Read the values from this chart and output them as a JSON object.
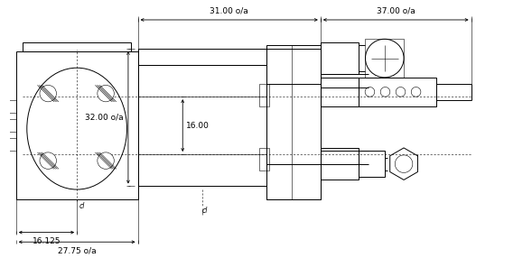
{
  "bg_color": "#ffffff",
  "line_color": "#000000",
  "lw": 0.7,
  "tlw": 0.4,
  "fig_width": 5.89,
  "fig_height": 2.86,
  "dpi": 100,
  "dimensions": {
    "d31": "31.00 o/a",
    "d37": "37.00 o/a",
    "d32": "32.00 o/a",
    "d16": "16.00",
    "d16125": "16.125",
    "d2775": "27.75 o/a"
  },
  "xlim": [
    0,
    80
  ],
  "ylim": [
    -6,
    34
  ]
}
